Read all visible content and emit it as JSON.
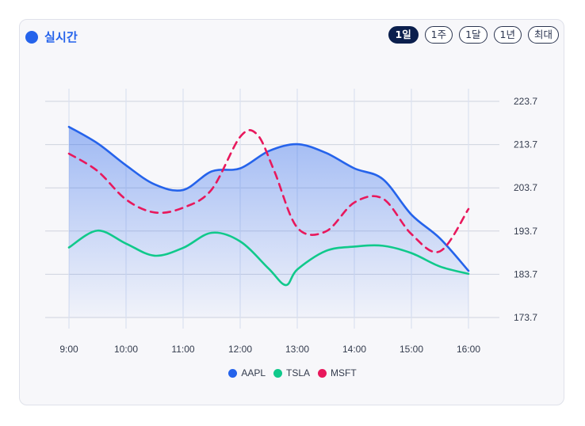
{
  "header": {
    "live_label": "실시간",
    "ranges": [
      "1일",
      "1주",
      "1달",
      "1년",
      "최대"
    ],
    "active_range": "1일"
  },
  "colors": {
    "accent": "#2563eb",
    "active_range_bg": "#0b1f4d"
  },
  "chart_data": {
    "type": "line",
    "title": "",
    "xlabel": "",
    "ylabel": "",
    "x_ticks": [
      "9:00",
      "10:00",
      "11:00",
      "12:00",
      "13:00",
      "14:00",
      "15:00",
      "16:00"
    ],
    "y_ticks": [
      223.7,
      213.7,
      203.7,
      193.7,
      183.7,
      173.7
    ],
    "x_range": [
      9,
      16
    ],
    "ylim": [
      173.7,
      223.7
    ],
    "grid": true,
    "y_axis_side": "right",
    "legend_position": "bottom-center",
    "series": [
      {
        "name": "AAPL",
        "color": "#2563eb",
        "style": "solid",
        "fill": true,
        "points": [
          [
            9.0,
            217.8
          ],
          [
            9.5,
            214.0
          ],
          [
            10.0,
            208.9
          ],
          [
            10.5,
            204.5
          ],
          [
            11.0,
            203.2
          ],
          [
            11.5,
            207.5
          ],
          [
            12.0,
            208.2
          ],
          [
            12.5,
            212.2
          ],
          [
            13.0,
            213.8
          ],
          [
            13.5,
            211.8
          ],
          [
            14.0,
            208.2
          ],
          [
            14.5,
            205.7
          ],
          [
            15.0,
            197.5
          ],
          [
            15.5,
            192.0
          ],
          [
            16.0,
            184.5
          ]
        ]
      },
      {
        "name": "TSLA",
        "color": "#10c98b",
        "style": "solid",
        "fill": false,
        "points": [
          [
            9.0,
            189.9
          ],
          [
            9.5,
            193.8
          ],
          [
            10.0,
            190.8
          ],
          [
            10.5,
            188.0
          ],
          [
            11.0,
            189.8
          ],
          [
            11.5,
            193.3
          ],
          [
            12.0,
            191.3
          ],
          [
            12.5,
            185.0
          ],
          [
            12.8,
            181.2
          ],
          [
            13.0,
            184.8
          ],
          [
            13.5,
            189.1
          ],
          [
            14.0,
            190.1
          ],
          [
            14.5,
            190.3
          ],
          [
            15.0,
            188.6
          ],
          [
            15.5,
            185.5
          ],
          [
            16.0,
            183.8
          ]
        ]
      },
      {
        "name": "MSFT",
        "color": "#e8185c",
        "style": "dashed",
        "fill": false,
        "points": [
          [
            9.0,
            211.6
          ],
          [
            9.5,
            207.6
          ],
          [
            10.0,
            201.0
          ],
          [
            10.5,
            198.0
          ],
          [
            11.0,
            199.1
          ],
          [
            11.5,
            203.3
          ],
          [
            12.0,
            215.5
          ],
          [
            12.3,
            216.0
          ],
          [
            12.6,
            207.5
          ],
          [
            13.0,
            194.5
          ],
          [
            13.5,
            193.6
          ],
          [
            14.0,
            200.3
          ],
          [
            14.5,
            201.2
          ],
          [
            15.0,
            193.0
          ],
          [
            15.5,
            189.0
          ],
          [
            16.0,
            198.8
          ]
        ]
      }
    ]
  }
}
